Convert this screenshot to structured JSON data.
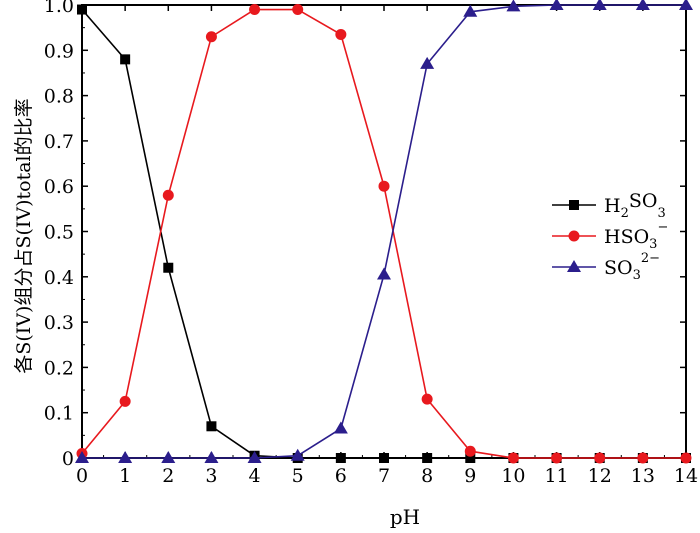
{
  "chart_data": {
    "type": "line",
    "title": "",
    "xlabel": "pH",
    "ylabel": "各S(IV)组分占S(IV)total的比率",
    "xlim": [
      0,
      14
    ],
    "ylim": [
      0,
      1.0
    ],
    "x_ticks": [
      "0",
      "1",
      "2",
      "3",
      "4",
      "5",
      "6",
      "7",
      "8",
      "9",
      "10",
      "11",
      "12",
      "13",
      "14"
    ],
    "y_ticks": [
      "0",
      "0.1",
      "0.2",
      "0.3",
      "0.4",
      "0.5",
      "0.6",
      "0.7",
      "0.8",
      "0.9",
      "1.0"
    ],
    "x": [
      0,
      1,
      2,
      3,
      4,
      5,
      6,
      7,
      8,
      9,
      10,
      11,
      12,
      13,
      14
    ],
    "grid": false,
    "legend_position": "right",
    "series": [
      {
        "name": "H2SO3",
        "legend_main": "H",
        "legend_sub": "2",
        "legend_mid": "SO",
        "legend_sub2": "3",
        "legend_sup": "",
        "marker": "square",
        "color": "#000000",
        "values": [
          0.99,
          0.88,
          0.42,
          0.07,
          0.005,
          0.0,
          0.0,
          0.0,
          0.0,
          0.0,
          0.0,
          0.0,
          0.0,
          0.0,
          0.0
        ]
      },
      {
        "name": "HSO3−",
        "legend_main": "HSO",
        "legend_sub": "3",
        "legend_mid": "",
        "legend_sub2": "",
        "legend_sup": "−",
        "marker": "circle",
        "color": "#e8191e",
        "values": [
          0.01,
          0.125,
          0.58,
          0.93,
          0.99,
          0.99,
          0.935,
          0.6,
          0.13,
          0.015,
          0.0,
          0.0,
          0.0,
          0.0,
          0.0
        ]
      },
      {
        "name": "SO32−",
        "legend_main": "SO",
        "legend_sub": "3",
        "legend_mid": "",
        "legend_sub2": "",
        "legend_sup": "2−",
        "marker": "triangle",
        "color": "#2b1e8c",
        "values": [
          0.0,
          0.0,
          0.0,
          0.0,
          0.0,
          0.005,
          0.065,
          0.405,
          0.87,
          0.985,
          0.997,
          1.0,
          1.0,
          1.0,
          1.0
        ]
      }
    ]
  }
}
